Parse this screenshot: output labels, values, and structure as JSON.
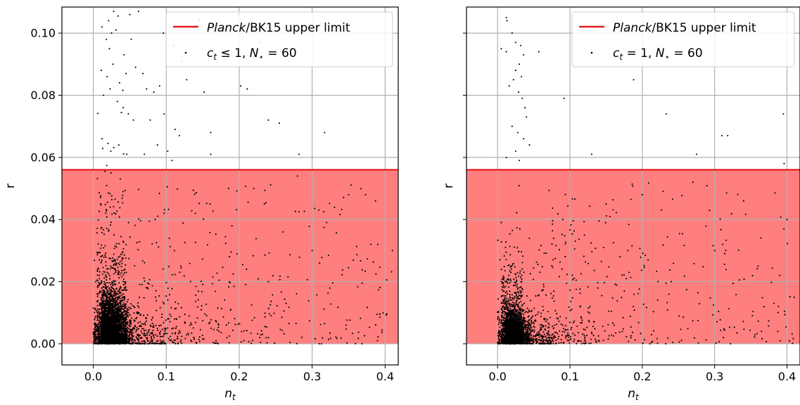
{
  "chart_data": [
    {
      "type": "scatter",
      "xlabel_var": "n",
      "xlabel_sub": "t",
      "ylabel": "r",
      "xlim": [
        -0.043,
        0.418
      ],
      "ylim": [
        -0.0068,
        0.1084
      ],
      "xticks": [
        "0.0",
        "0.1",
        "0.2",
        "0.3",
        "0.4"
      ],
      "xtick_values": [
        0.0,
        0.1,
        0.2,
        0.3,
        0.4
      ],
      "yticks": [
        "0.00",
        "0.02",
        "0.04",
        "0.06",
        "0.08",
        "0.10"
      ],
      "ytick_values": [
        0.0,
        0.02,
        0.04,
        0.06,
        0.08,
        0.1
      ],
      "show_ytick_labels": true,
      "grid": true,
      "legend_position": "top-right",
      "upper_limit": 0.056,
      "limit_color": "#e31a1c",
      "fill_color": "#ff7f7f",
      "point_color": "#000000",
      "legend": {
        "line_label_italic": "Planck",
        "line_label_rest": "/BK15 upper limit",
        "scatter_label": "c_t ≤ 1, N_⋆ = 60"
      },
      "scatter_legend_parts": [
        "c",
        "t",
        " ≤ 1, ",
        "N",
        "⋆",
        " = 60"
      ],
      "seed": 7,
      "points": [
        [
          0.012,
          0.102
        ],
        [
          0.021,
          0.104
        ],
        [
          0.028,
          0.107
        ],
        [
          0.034,
          0.1055
        ],
        [
          0.05,
          0.106
        ],
        [
          0.062,
          0.107
        ],
        [
          0.018,
          0.098
        ],
        [
          0.025,
          0.1
        ],
        [
          0.022,
          0.095
        ],
        [
          0.031,
          0.101
        ],
        [
          0.042,
          0.093
        ],
        [
          0.052,
          0.098
        ],
        [
          0.011,
          0.088
        ],
        [
          0.019,
          0.086
        ],
        [
          0.027,
          0.09
        ],
        [
          0.036,
          0.084
        ],
        [
          0.045,
          0.087
        ],
        [
          0.058,
          0.089
        ],
        [
          0.014,
          0.08
        ],
        [
          0.023,
          0.082
        ],
        [
          0.033,
          0.078
        ],
        [
          0.041,
          0.076
        ],
        [
          0.048,
          0.074
        ],
        [
          0.055,
          0.072
        ],
        [
          0.068,
          0.087
        ],
        [
          0.073,
          0.082
        ],
        [
          0.078,
          0.072
        ],
        [
          0.083,
          0.081
        ],
        [
          0.091,
          0.083
        ],
        [
          0.097,
          0.074
        ],
        [
          0.112,
          0.069
        ],
        [
          0.118,
          0.067
        ],
        [
          0.121,
          0.091
        ],
        [
          0.128,
          0.085
        ],
        [
          0.137,
          0.102
        ],
        [
          0.145,
          0.104
        ],
        [
          0.152,
          0.081
        ],
        [
          0.161,
          0.068
        ],
        [
          0.171,
          0.102
        ],
        [
          0.183,
          0.094
        ],
        [
          0.199,
          0.106
        ],
        [
          0.202,
          0.083
        ],
        [
          0.211,
          0.082
        ],
        [
          0.229,
          0.097
        ],
        [
          0.24,
          0.072
        ],
        [
          0.255,
          0.071
        ],
        [
          0.271,
          0.095
        ],
        [
          0.282,
          0.061
        ],
        [
          0.317,
          0.068
        ],
        [
          0.096,
          0.1
        ],
        [
          0.11,
          0.096
        ],
        [
          0.102,
          0.062
        ],
        [
          0.088,
          0.064
        ],
        [
          0.108,
          0.059
        ],
        [
          0.161,
          0.061
        ],
        [
          0.012,
          0.066
        ],
        [
          0.024,
          0.062
        ],
        [
          0.035,
          0.064
        ],
        [
          0.046,
          0.061
        ],
        [
          0.07,
          0.061
        ],
        [
          0.16,
          0.045
        ],
        [
          0.22,
          0.05
        ],
        [
          0.28,
          0.054
        ],
        [
          0.35,
          0.048
        ],
        [
          0.39,
          0.032
        ],
        [
          0.41,
          0.03
        ],
        [
          0.3,
          0.03
        ],
        [
          0.26,
          0.036
        ],
        [
          0.19,
          0.038
        ],
        [
          0.14,
          0.042
        ],
        [
          0.12,
          0.025
        ],
        [
          0.24,
          0.02
        ]
      ]
    },
    {
      "type": "scatter",
      "xlabel_var": "n",
      "xlabel_sub": "t",
      "ylabel": "r",
      "xlim": [
        -0.043,
        0.418
      ],
      "ylim": [
        -0.0068,
        0.1084
      ],
      "xticks": [
        "0.0",
        "0.1",
        "0.2",
        "0.3",
        "0.4"
      ],
      "xtick_values": [
        0.0,
        0.1,
        0.2,
        0.3,
        0.4
      ],
      "yticks": [
        "0.00",
        "0.02",
        "0.04",
        "0.06",
        "0.08",
        "0.10"
      ],
      "ytick_values": [
        0.0,
        0.02,
        0.04,
        0.06,
        0.08,
        0.1
      ],
      "show_ytick_labels": false,
      "grid": true,
      "legend_position": "top-right",
      "upper_limit": 0.056,
      "limit_color": "#e31a1c",
      "fill_color": "#ff7f7f",
      "point_color": "#000000",
      "legend": {
        "line_label_italic": "Planck",
        "line_label_rest": "/BK15 upper limit",
        "scatter_label": "c_t = 1, N_⋆ = 60"
      },
      "scatter_legend_parts": [
        "c",
        "t",
        " = 1, ",
        "N",
        "⋆",
        " = 60"
      ],
      "seed": 13,
      "points": [
        [
          0.012,
          0.105
        ],
        [
          0.013,
          0.104
        ],
        [
          0.005,
          0.095
        ],
        [
          0.012,
          0.094
        ],
        [
          0.02,
          0.1
        ],
        [
          0.025,
          0.097
        ],
        [
          0.032,
          0.096
        ],
        [
          0.036,
          0.093
        ],
        [
          0.057,
          0.094
        ],
        [
          0.03,
          0.09
        ],
        [
          0.025,
          0.088
        ],
        [
          0.033,
          0.086
        ],
        [
          0.016,
          0.083
        ],
        [
          0.022,
          0.085
        ],
        [
          0.029,
          0.081
        ],
        [
          0.034,
          0.079
        ],
        [
          0.038,
          0.076
        ],
        [
          0.04,
          0.073
        ],
        [
          0.02,
          0.07
        ],
        [
          0.028,
          0.068
        ],
        [
          0.036,
          0.066
        ],
        [
          0.044,
          0.064
        ],
        [
          0.092,
          0.079
        ],
        [
          0.188,
          0.085
        ],
        [
          0.233,
          0.074
        ],
        [
          0.31,
          0.067
        ],
        [
          0.318,
          0.067
        ],
        [
          0.395,
          0.074
        ],
        [
          0.396,
          0.058
        ],
        [
          0.275,
          0.061
        ],
        [
          0.13,
          0.061
        ],
        [
          0.025,
          0.062
        ],
        [
          0.03,
          0.059
        ],
        [
          0.012,
          0.06
        ],
        [
          0.005,
          0.039
        ],
        [
          0.15,
          0.045
        ],
        [
          0.2,
          0.048
        ],
        [
          0.27,
          0.052
        ],
        [
          0.34,
          0.046
        ],
        [
          0.4,
          0.04
        ],
        [
          0.36,
          0.025
        ],
        [
          0.3,
          0.03
        ],
        [
          0.24,
          0.02
        ],
        [
          0.18,
          0.03
        ],
        [
          0.12,
          0.035
        ],
        [
          0.09,
          0.04
        ],
        [
          0.41,
          0.015
        ],
        [
          0.39,
          0.022
        ]
      ]
    }
  ]
}
